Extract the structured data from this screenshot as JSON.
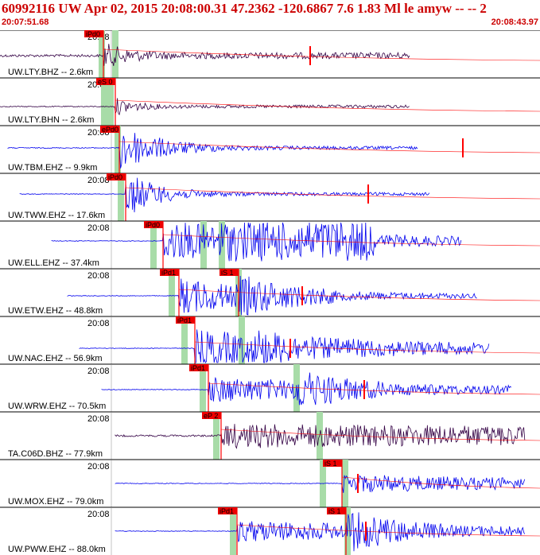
{
  "header": {
    "title": "60992116 UW Apr 02, 2015 20:08:00.31   47.2362 -120.6867  7.6 1.83 Ml le amyw -- --   2",
    "start_time": "20:07:51.68",
    "end_time": "20:08:43.97"
  },
  "colors": {
    "title": "#cc0000",
    "grid": "#000000",
    "pick_box": "#ee0000",
    "pick_line": "#ff0000",
    "shade": "#a8dca8",
    "trace_blue": "#0000ee",
    "trace_dark": "#330044"
  },
  "minute_label": "20:08",
  "traces": [
    {
      "station": "UW.LTY.BHZ -- 2.6km",
      "pick": "iPd0",
      "color": "dark"
    },
    {
      "station": "UW.LTY.BHN -- 2.6km",
      "pick": "eS 0",
      "color": "dark"
    },
    {
      "station": "UW.TBM.EHZ -- 9.9km",
      "pick": "ePd0",
      "color": "blue"
    },
    {
      "station": "UW.TWW.EHZ -- 17.6km",
      "pick": "iPd0",
      "color": "blue"
    },
    {
      "station": "UW.ELL.EHZ -- 37.4km",
      "pick": "iPd0",
      "color": "blue"
    },
    {
      "station": "UW.ETW.EHZ -- 48.8km",
      "pick": "iPd1",
      "pick2": "iS 1",
      "color": "blue"
    },
    {
      "station": "UW.NAC.EHZ -- 56.9km",
      "pick": "iPd1",
      "color": "blue"
    },
    {
      "station": "UW.WRW.EHZ -- 70.5km",
      "pick": "iPd1",
      "color": "blue"
    },
    {
      "station": "TA.C06D.BHZ -- 77.9km",
      "pick": "eP 2",
      "color": "dark"
    },
    {
      "station": "UW.MOX.EHZ -- 79.0km",
      "pick2": "iS 1",
      "color": "blue"
    },
    {
      "station": "UW.PWW.EHZ -- 88.0km",
      "pick": "iPd1",
      "pick2": "iS 1",
      "color": "blue"
    }
  ]
}
